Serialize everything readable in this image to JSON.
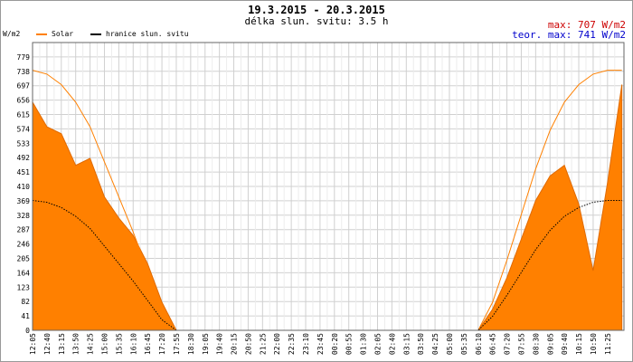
{
  "header": {
    "title": "19.3.2015 - 20.3.2015",
    "subtitle": "délka slun. svitu: 3.5 h",
    "units": "W/m2"
  },
  "legend": {
    "solar": "Solar",
    "limit": "hranice slun. svitu"
  },
  "stats": {
    "max_label": "max:",
    "max_value": "707 W/m2",
    "teor_label": "teor. max:",
    "teor_value": "741 W/m2"
  },
  "colors": {
    "solar_fill": "#ff8000",
    "solar_stroke": "#e06a00",
    "theoretical": "#ff8000",
    "limit": "#000000",
    "grid": "#d0d0d0",
    "max_text": "#cc0000",
    "teor_text": "#0000cc"
  },
  "chart_data": {
    "type": "area",
    "ylabel": "W/m2",
    "ylim": [
      0,
      820
    ],
    "yticks": [
      "0",
      "41",
      "82",
      "123",
      "164",
      "205",
      "246",
      "287",
      "328",
      "369",
      "410",
      "451",
      "492",
      "533",
      "574",
      "615",
      "656",
      "697",
      "738",
      "779"
    ],
    "xlim": [
      "12:05",
      "12:05"
    ],
    "xticks": [
      "12:05",
      "12:40",
      "13:15",
      "13:50",
      "14:25",
      "15:00",
      "15:35",
      "16:10",
      "16:45",
      "17:20",
      "17:55",
      "18:30",
      "19:05",
      "19:40",
      "20:15",
      "20:50",
      "21:25",
      "22:00",
      "22:35",
      "23:10",
      "23:45",
      "00:20",
      "00:55",
      "01:30",
      "02:05",
      "02:40",
      "03:15",
      "03:50",
      "04:25",
      "05:00",
      "05:35",
      "06:10",
      "06:45",
      "07:20",
      "07:55",
      "08:30",
      "09:05",
      "09:40",
      "10:15",
      "10:50",
      "11:25"
    ],
    "series": [
      {
        "name": "Solar",
        "style": "area",
        "x": [
          "12:05",
          "12:40",
          "13:15",
          "13:50",
          "14:25",
          "15:00",
          "15:35",
          "16:10",
          "16:45",
          "17:20",
          "17:55",
          "18:30",
          "05:35",
          "06:10",
          "06:45",
          "07:20",
          "07:55",
          "08:30",
          "09:05",
          "09:40",
          "10:15",
          "10:50",
          "11:25",
          "12:00"
        ],
        "values": [
          650,
          580,
          560,
          470,
          490,
          380,
          320,
          270,
          190,
          80,
          0,
          0,
          0,
          0,
          60,
          150,
          260,
          370,
          440,
          470,
          360,
          170,
          420,
          700
        ]
      },
      {
        "name": "",
        "style": "line",
        "x": [
          "12:05",
          "12:40",
          "13:15",
          "13:50",
          "14:25",
          "15:00",
          "15:35",
          "16:10",
          "16:45",
          "17:20",
          "17:55",
          "18:30",
          "05:35",
          "06:10",
          "06:45",
          "07:20",
          "07:55",
          "08:30",
          "09:05",
          "09:40",
          "10:15",
          "10:50",
          "11:25",
          "12:00"
        ],
        "values": [
          741,
          730,
          700,
          650,
          580,
          480,
          380,
          280,
          170,
          60,
          0,
          0,
          0,
          0,
          80,
          200,
          330,
          460,
          570,
          650,
          700,
          730,
          741,
          741
        ]
      },
      {
        "name": "hranice slun. svitu",
        "style": "line",
        "x": [
          "12:05",
          "12:40",
          "13:15",
          "13:50",
          "14:25",
          "15:00",
          "15:35",
          "16:10",
          "16:45",
          "17:20",
          "17:55",
          "18:30",
          "05:35",
          "06:10",
          "06:45",
          "07:20",
          "07:55",
          "08:30",
          "09:05",
          "09:40",
          "10:15",
          "10:50",
          "11:25",
          "12:00"
        ],
        "values": [
          370,
          365,
          350,
          325,
          290,
          240,
          190,
          140,
          85,
          30,
          0,
          0,
          0,
          0,
          40,
          100,
          165,
          230,
          285,
          325,
          350,
          365,
          370,
          370
        ]
      }
    ]
  }
}
